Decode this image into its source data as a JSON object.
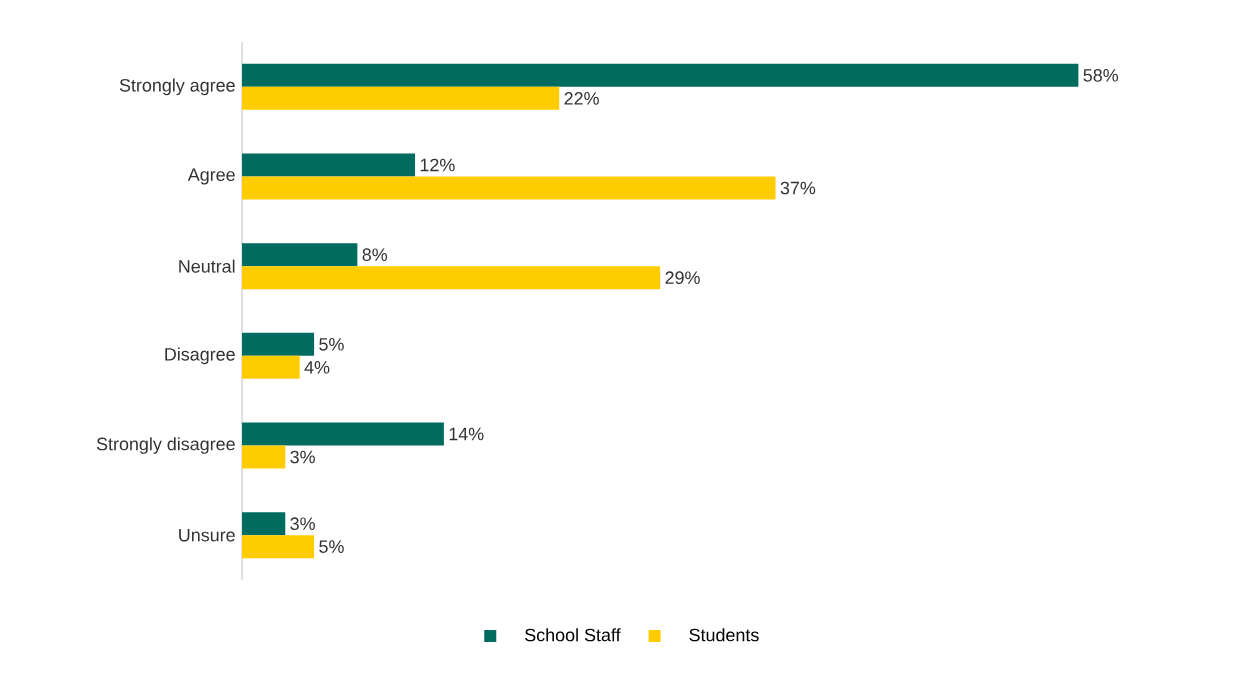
{
  "chart_data": {
    "type": "bar",
    "orientation": "horizontal",
    "categories": [
      "Strongly agree",
      "Agree",
      "Neutral",
      "Disagree",
      "Strongly disagree",
      "Unsure"
    ],
    "series": [
      {
        "name": "School Staff",
        "color": "#006b5f",
        "values": [
          58,
          12,
          8,
          5,
          14,
          3
        ],
        "value_labels": [
          "58%",
          "12%",
          "8%",
          "5%",
          "14%",
          "3%"
        ]
      },
      {
        "name": "Students",
        "color": "#ffcc00",
        "values": [
          22,
          37,
          29,
          4,
          3,
          5
        ],
        "value_labels": [
          "22%",
          "37%",
          "29%",
          "4%",
          "3%",
          "5%"
        ]
      }
    ],
    "legend": "bottom",
    "tick_labels": "y"
  }
}
